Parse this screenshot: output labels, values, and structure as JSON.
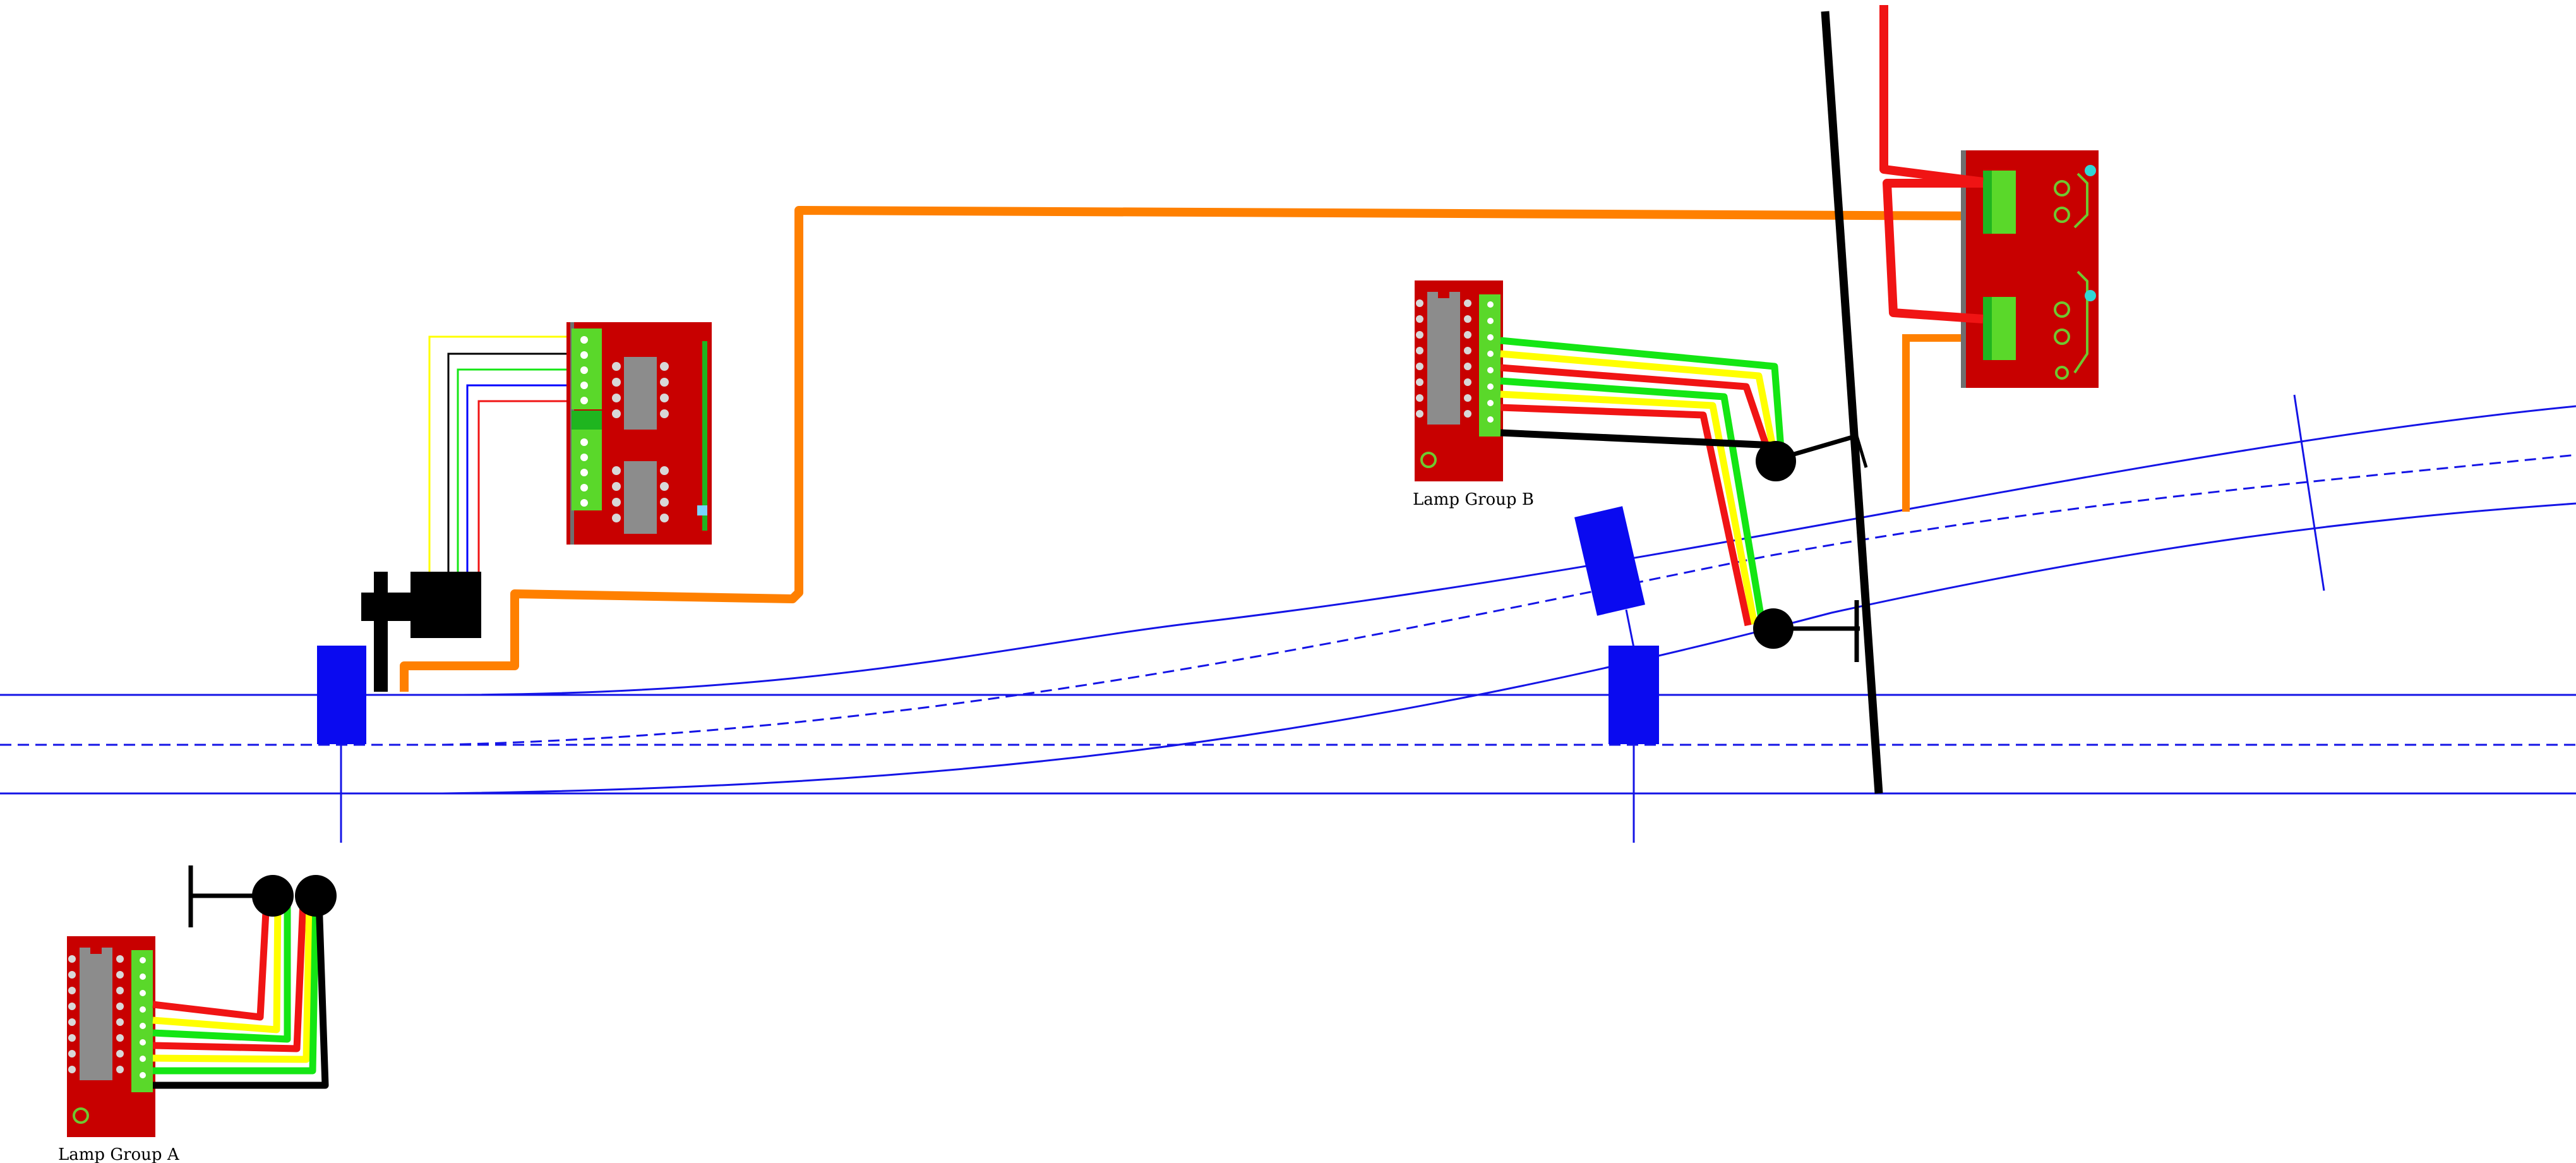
{
  "labels": {
    "lamp_group_a": "Lamp Group A",
    "lamp_group_b": "Lamp Group B"
  },
  "colors": {
    "track": "#1414e6",
    "detector": "#0a0af0",
    "board": "#c80000",
    "board_dark": "#9a0000",
    "terminal": "#5ad82a",
    "chip": "#8c8c8c",
    "power_bus": "#ff8000",
    "wire_red": "#f01414",
    "wire_yellow": "#ffff00",
    "wire_green": "#14e614",
    "wire_black": "#000000",
    "wire_blue": "#0000ff",
    "signal_lamp": "#000000"
  },
  "icons": {
    "point_motor": "point-motor-icon",
    "signal_head": "signal-head-icon",
    "lamp_driver_board": "lamp-driver-board-icon",
    "relay_board": "relay-board-icon",
    "servo_board": "servo-board-icon"
  }
}
